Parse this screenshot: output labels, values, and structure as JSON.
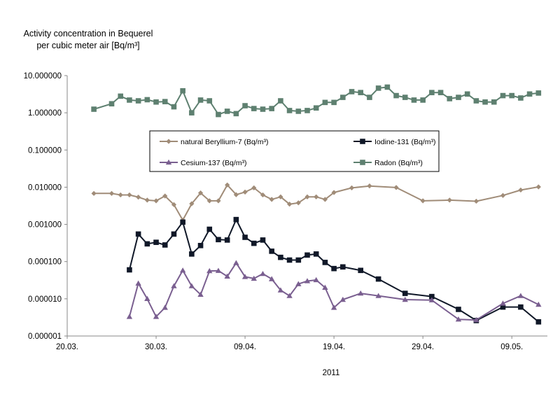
{
  "chart_data": {
    "type": "line",
    "ylabel_line1": "Activity concentration in Bequerel",
    "ylabel_line2": "per cubic meter air [Bq/m³]",
    "xlabel": "2011",
    "yscale": "log",
    "ylim": [
      1e-06,
      10
    ],
    "yticks": [
      "10.000000",
      "1.000000",
      "0.100000",
      "0.010000",
      "0.001000",
      "0.000100",
      "0.000010",
      "0.000001"
    ],
    "xlim": [
      "2011-03-20",
      "2011-05-13"
    ],
    "xticks": [
      "20.03.",
      "30.03.",
      "09.04.",
      "19.04.",
      "29.04.",
      "09.05."
    ],
    "legend_position": "upper-center",
    "series": [
      {
        "name": "natural Beryllium-7 (Bq/m³)",
        "color": "#a08c78",
        "marker": "diamond",
        "points": [
          [
            "2011-03-23",
            0.0068
          ],
          [
            "2011-03-25",
            0.0068
          ],
          [
            "2011-03-26",
            0.0062
          ],
          [
            "2011-03-27",
            0.0062
          ],
          [
            "2011-03-28",
            0.0054
          ],
          [
            "2011-03-29",
            0.0045
          ],
          [
            "2011-03-30",
            0.0043
          ],
          [
            "2011-03-31",
            0.0058
          ],
          [
            "2011-04-01",
            0.0034
          ],
          [
            "2011-04-02",
            0.0013
          ],
          [
            "2011-04-03",
            0.0036
          ],
          [
            "2011-04-04",
            0.007
          ],
          [
            "2011-04-05",
            0.0043
          ],
          [
            "2011-04-06",
            0.0043
          ],
          [
            "2011-04-07",
            0.0115
          ],
          [
            "2011-04-08",
            0.0063
          ],
          [
            "2011-04-09",
            0.0074
          ],
          [
            "2011-04-10",
            0.0096
          ],
          [
            "2011-04-11",
            0.0062
          ],
          [
            "2011-04-12",
            0.0047
          ],
          [
            "2011-04-13",
            0.0055
          ],
          [
            "2011-04-14",
            0.0035
          ],
          [
            "2011-04-15",
            0.0038
          ],
          [
            "2011-04-16",
            0.0055
          ],
          [
            "2011-04-17",
            0.0055
          ],
          [
            "2011-04-18",
            0.0047
          ],
          [
            "2011-04-19",
            0.0072
          ],
          [
            "2011-04-21",
            0.0096
          ],
          [
            "2011-04-23",
            0.0108
          ],
          [
            "2011-04-26",
            0.0098
          ],
          [
            "2011-04-29",
            0.0043
          ],
          [
            "2011-05-02",
            0.0045
          ],
          [
            "2011-05-05",
            0.0042
          ],
          [
            "2011-05-08",
            0.006
          ],
          [
            "2011-05-10",
            0.0084
          ],
          [
            "2011-05-12",
            0.0102
          ]
        ]
      },
      {
        "name": "Iodine-131 (Bq/m³)",
        "color": "#101828",
        "marker": "square",
        "points": [
          [
            "2011-03-27",
            6e-05
          ],
          [
            "2011-03-28",
            0.00055
          ],
          [
            "2011-03-29",
            0.0003
          ],
          [
            "2011-03-30",
            0.00033
          ],
          [
            "2011-03-31",
            0.00028
          ],
          [
            "2011-04-01",
            0.00055
          ],
          [
            "2011-04-02",
            0.00115
          ],
          [
            "2011-04-03",
            0.00016
          ],
          [
            "2011-04-04",
            0.00027
          ],
          [
            "2011-04-05",
            0.00074
          ],
          [
            "2011-04-06",
            0.00039
          ],
          [
            "2011-04-07",
            0.00038
          ],
          [
            "2011-04-08",
            0.00135
          ],
          [
            "2011-04-09",
            0.00045
          ],
          [
            "2011-04-10",
            0.00031
          ],
          [
            "2011-04-11",
            0.00038
          ],
          [
            "2011-04-12",
            0.00019
          ],
          [
            "2011-04-13",
            0.00013
          ],
          [
            "2011-04-14",
            0.00011
          ],
          [
            "2011-04-15",
            0.00011
          ],
          [
            "2011-04-16",
            0.00015
          ],
          [
            "2011-04-17",
            0.00016
          ],
          [
            "2011-04-18",
            9.5e-05
          ],
          [
            "2011-04-19",
            6.5e-05
          ],
          [
            "2011-04-20",
            7.2e-05
          ],
          [
            "2011-04-22",
            5.8e-05
          ],
          [
            "2011-04-24",
            3.4e-05
          ],
          [
            "2011-04-27",
            1.4e-05
          ],
          [
            "2011-04-30",
            1.15e-05
          ],
          [
            "2011-05-03",
            5.2e-06
          ],
          [
            "2011-05-05",
            2.6e-06
          ],
          [
            "2011-05-08",
            6e-06
          ],
          [
            "2011-05-10",
            6e-06
          ],
          [
            "2011-05-12",
            2.4e-06
          ]
        ]
      },
      {
        "name": "Cesium-137 (Bq/m³)",
        "color": "#7a5f90",
        "marker": "triangle",
        "points": [
          [
            "2011-03-27",
            3.3e-06
          ],
          [
            "2011-03-28",
            2.6e-05
          ],
          [
            "2011-03-29",
            1e-05
          ],
          [
            "2011-03-30",
            3.3e-06
          ],
          [
            "2011-03-31",
            5.8e-06
          ],
          [
            "2011-04-01",
            2.2e-05
          ],
          [
            "2011-04-02",
            5.8e-05
          ],
          [
            "2011-04-03",
            2.2e-05
          ],
          [
            "2011-04-04",
            1.3e-05
          ],
          [
            "2011-04-05",
            5.6e-05
          ],
          [
            "2011-04-06",
            5.7e-05
          ],
          [
            "2011-04-07",
            4e-05
          ],
          [
            "2011-04-08",
            9.2e-05
          ],
          [
            "2011-04-09",
            3.9e-05
          ],
          [
            "2011-04-10",
            3.5e-05
          ],
          [
            "2011-04-11",
            4.7e-05
          ],
          [
            "2011-04-12",
            3.4e-05
          ],
          [
            "2011-04-13",
            1.7e-05
          ],
          [
            "2011-04-14",
            1.2e-05
          ],
          [
            "2011-04-15",
            2.5e-05
          ],
          [
            "2011-04-16",
            3e-05
          ],
          [
            "2011-04-17",
            3.2e-05
          ],
          [
            "2011-04-18",
            2e-05
          ],
          [
            "2011-04-19",
            5.8e-06
          ],
          [
            "2011-04-20",
            9.5e-06
          ],
          [
            "2011-04-22",
            1.4e-05
          ],
          [
            "2011-04-24",
            1.2e-05
          ],
          [
            "2011-04-27",
            9.5e-06
          ],
          [
            "2011-04-30",
            9.2e-06
          ],
          [
            "2011-05-03",
            2.8e-06
          ],
          [
            "2011-05-05",
            2.7e-06
          ],
          [
            "2011-05-08",
            7.5e-06
          ],
          [
            "2011-05-10",
            1.2e-05
          ],
          [
            "2011-05-12",
            7e-06
          ]
        ]
      },
      {
        "name": "Radon (Bq/m³)",
        "color": "#5e8070",
        "marker": "square",
        "points": [
          [
            "2011-03-23",
            1.25
          ],
          [
            "2011-03-25",
            1.75
          ],
          [
            "2011-03-26",
            2.8
          ],
          [
            "2011-03-27",
            2.2
          ],
          [
            "2011-03-28",
            2.1
          ],
          [
            "2011-03-29",
            2.25
          ],
          [
            "2011-03-30",
            1.95
          ],
          [
            "2011-03-31",
            2.0
          ],
          [
            "2011-04-01",
            1.45
          ],
          [
            "2011-04-02",
            3.9
          ],
          [
            "2011-04-03",
            1.0
          ],
          [
            "2011-04-04",
            2.2
          ],
          [
            "2011-04-05",
            2.1
          ],
          [
            "2011-04-06",
            0.9
          ],
          [
            "2011-04-07",
            1.1
          ],
          [
            "2011-04-08",
            0.95
          ],
          [
            "2011-04-09",
            1.55
          ],
          [
            "2011-04-10",
            1.3
          ],
          [
            "2011-04-11",
            1.25
          ],
          [
            "2011-04-12",
            1.3
          ],
          [
            "2011-04-13",
            2.1
          ],
          [
            "2011-04-14",
            1.15
          ],
          [
            "2011-04-15",
            1.1
          ],
          [
            "2011-04-16",
            1.15
          ],
          [
            "2011-04-17",
            1.35
          ],
          [
            "2011-04-18",
            1.9
          ],
          [
            "2011-04-19",
            1.9
          ],
          [
            "2011-04-20",
            2.6
          ],
          [
            "2011-04-21",
            3.7
          ],
          [
            "2011-04-22",
            3.5
          ],
          [
            "2011-04-23",
            2.6
          ],
          [
            "2011-04-24",
            4.6
          ],
          [
            "2011-04-25",
            4.9
          ],
          [
            "2011-04-26",
            2.9
          ],
          [
            "2011-04-27",
            2.6
          ],
          [
            "2011-04-28",
            2.2
          ],
          [
            "2011-04-29",
            2.2
          ],
          [
            "2011-04-30",
            3.5
          ],
          [
            "2011-05-01",
            3.5
          ],
          [
            "2011-05-02",
            2.4
          ],
          [
            "2011-05-03",
            2.6
          ],
          [
            "2011-05-04",
            3.2
          ],
          [
            "2011-05-05",
            2.1
          ],
          [
            "2011-05-06",
            1.95
          ],
          [
            "2011-05-07",
            1.95
          ],
          [
            "2011-05-08",
            2.9
          ],
          [
            "2011-05-09",
            2.9
          ],
          [
            "2011-05-10",
            2.5
          ],
          [
            "2011-05-11",
            3.2
          ],
          [
            "2011-05-12",
            3.4
          ]
        ]
      }
    ]
  }
}
